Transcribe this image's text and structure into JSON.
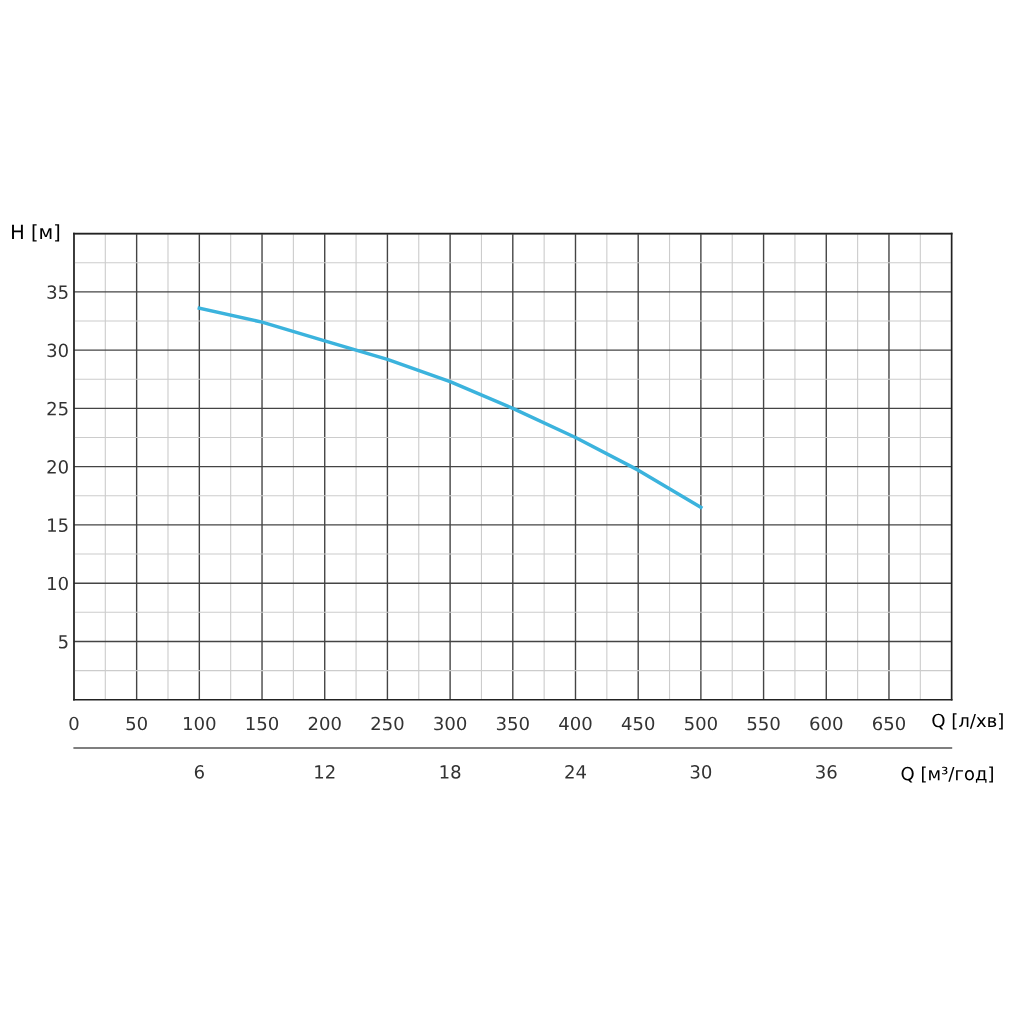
{
  "chart_data": {
    "type": "line",
    "ylabel": "H [м]",
    "xlabel": "Q [л/хв]",
    "x2label": "Q [м³/год]",
    "x": [
      100,
      150,
      200,
      250,
      300,
      350,
      400,
      450,
      500
    ],
    "series": [
      {
        "color": "#3bb3dd",
        "values": [
          33.6,
          32.4,
          30.8,
          29.2,
          27.3,
          25.0,
          22.5,
          19.7,
          16.5
        ]
      }
    ],
    "xlim": [
      0,
      700
    ],
    "xticks": [
      0,
      50,
      100,
      150,
      200,
      250,
      300,
      350,
      400,
      450,
      500,
      550,
      600,
      650,
      {
        "value": 700,
        "label": null
      }
    ],
    "ylim": [
      0,
      40
    ],
    "yticks": [
      5,
      10,
      15,
      20,
      25,
      30,
      35,
      {
        "value": 40,
        "label": null
      }
    ],
    "x2lim": [
      0,
      42
    ],
    "x2ticks": [
      6,
      12,
      18,
      24,
      30,
      36
    ],
    "grid": true,
    "marker": "none",
    "line_style": "solid"
  }
}
